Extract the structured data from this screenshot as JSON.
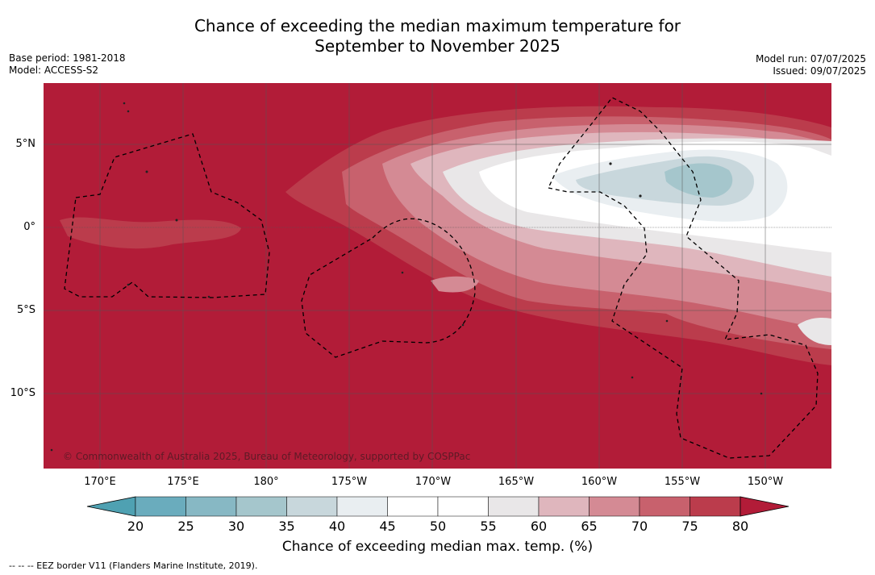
{
  "header": {
    "title_line1": "Chance of exceeding the median maximum temperature for",
    "title_line2": "September to November 2025",
    "base_period": "Base period: 1981-2018",
    "model": "Model: ACCESS-S2",
    "model_run": "Model run: 07/07/2025",
    "issued": "Issued: 09/07/2025"
  },
  "axes": {
    "lon_labels": [
      "170°E",
      "175°E",
      "180°",
      "175°W",
      "170°W",
      "165°W",
      "160°W",
      "155°W",
      "150°W"
    ],
    "lat_labels": [
      "5°N",
      "0°",
      "5°S",
      "10°S"
    ]
  },
  "copyright": "© Commonwealth of Australia 2025, Bureau of Meteorology, supported by COSPPac",
  "colorbar": {
    "ticks": [
      "20",
      "25",
      "30",
      "35",
      "40",
      "45",
      "50",
      "55",
      "60",
      "65",
      "70",
      "75",
      "80"
    ],
    "title": "Chance of exceeding median max. temp. (%)",
    "colors": [
      "#4fa1b2",
      "#6aacbd",
      "#87b8c4",
      "#a5c6cc",
      "#c8d7dc",
      "#e9eef1",
      "#ffffff",
      "#ffffff",
      "#e9e7e8",
      "#dfb6bd",
      "#d48a94",
      "#c8616d",
      "#bb3c4c",
      "#b21c38"
    ]
  },
  "legend": {
    "eez": "--  --  -- EEZ border V11 (Flanders Marine Institute, 2019)."
  }
}
